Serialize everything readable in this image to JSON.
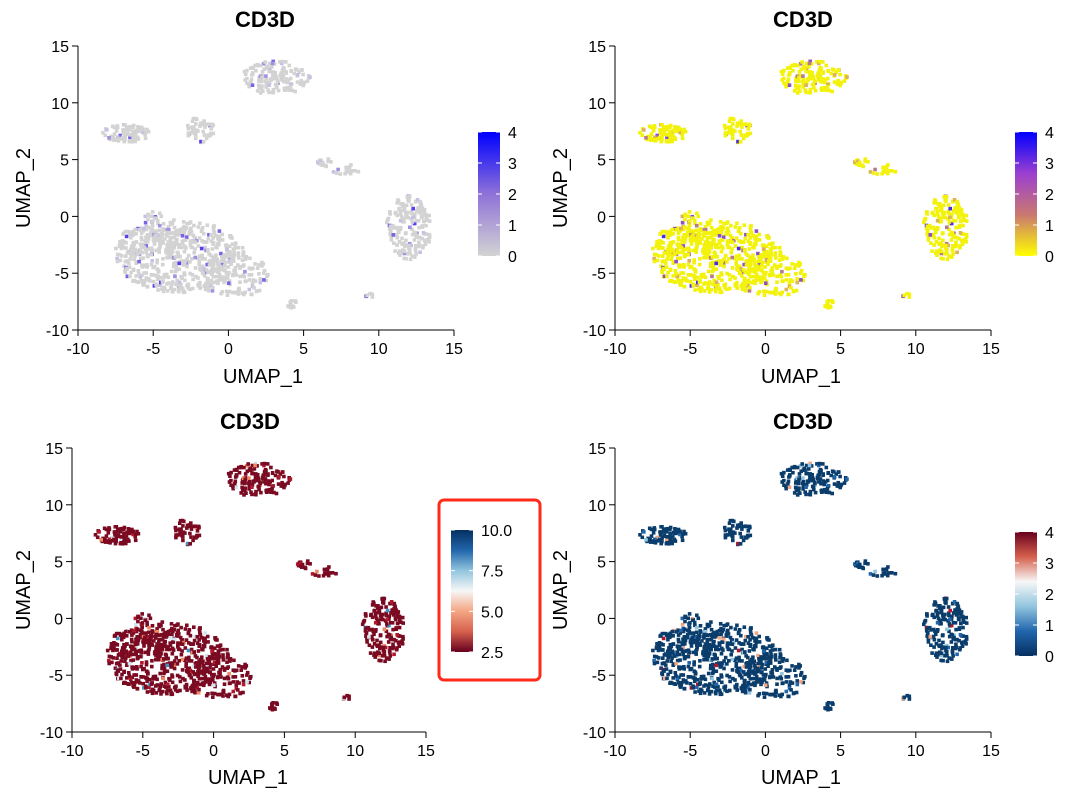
{
  "chart_data": [
    {
      "type": "scatter",
      "title": "CD3D",
      "xlabel": "UMAP_1",
      "ylabel": "UMAP_2",
      "xlim": [
        -10,
        15
      ],
      "ylim": [
        -10,
        15
      ],
      "xticks": [
        "-10",
        "-5",
        "0",
        "5",
        "10",
        "15"
      ],
      "yticks": [
        "-10",
        "-5",
        "0",
        "5",
        "10",
        "15"
      ],
      "legend": {
        "labels": [
          "4",
          "3",
          "2",
          "1",
          "0"
        ],
        "values": [
          4,
          3,
          2,
          1,
          0
        ],
        "gradient": [
          "#0000ff",
          "#8f72d8",
          "#d3d3d3"
        ],
        "highlighted": false
      },
      "background_color": "#d3d3d3",
      "colors": [
        "#d3d3d3",
        "#c7c0e3",
        "#a48fe0",
        "#7d62e6",
        "#5a3df0"
      ],
      "expression_mix": [
        0.9,
        0.04,
        0.03,
        0.02,
        0.01
      ]
    },
    {
      "type": "scatter",
      "title": "CD3D",
      "xlabel": "UMAP_1",
      "ylabel": "UMAP_2",
      "xlim": [
        -10,
        15
      ],
      "ylim": [
        -10,
        15
      ],
      "xticks": [
        "-10",
        "-5",
        "0",
        "5",
        "10",
        "15"
      ],
      "yticks": [
        "-10",
        "-5",
        "0",
        "5",
        "10",
        "15"
      ],
      "legend": {
        "labels": [
          "4",
          "3",
          "2",
          "1",
          "0"
        ],
        "values": [
          4,
          3,
          2,
          1,
          0
        ],
        "gradient": [
          "#0000ff",
          "#9b3fd0",
          "#c97870",
          "#ffff00"
        ],
        "highlighted": false
      },
      "background_color": "#f2f20a",
      "colors": [
        "#f2f20a",
        "#dcb15a",
        "#b57a8e",
        "#8e4fc2",
        "#4a2be8"
      ],
      "expression_mix": [
        0.9,
        0.04,
        0.03,
        0.02,
        0.01
      ]
    },
    {
      "type": "scatter",
      "title": "CD3D",
      "xlabel": "UMAP_1",
      "ylabel": "UMAP_2",
      "xlim": [
        -10,
        15
      ],
      "ylim": [
        -10,
        15
      ],
      "xticks": [
        "-10",
        "-5",
        "0",
        "5",
        "10",
        "15"
      ],
      "yticks": [
        "-10",
        "-5",
        "0",
        "5",
        "10",
        "15"
      ],
      "legend": {
        "labels": [
          "10.0",
          "7.5",
          "5.0",
          "2.5"
        ],
        "values": [
          10.0,
          7.5,
          5.0,
          2.5
        ],
        "gradient": [
          "#053061",
          "#2166ac",
          "#92c5de",
          "#f7f7f7",
          "#f4a582",
          "#d6604d",
          "#67001f"
        ],
        "highlighted": true,
        "highlight_color": "#ff2a1a"
      },
      "background_color": "#7a0a22",
      "colors": [
        "#7a0a22",
        "#b2182b",
        "#ef8a62",
        "#d1e5f0",
        "#4393c3"
      ],
      "expression_mix": [
        0.9,
        0.04,
        0.03,
        0.02,
        0.01
      ]
    },
    {
      "type": "scatter",
      "title": "CD3D",
      "xlabel": "UMAP_1",
      "ylabel": "UMAP_2",
      "xlim": [
        -10,
        15
      ],
      "ylim": [
        -10,
        15
      ],
      "xticks": [
        "-10",
        "-5",
        "0",
        "5",
        "10",
        "15"
      ],
      "yticks": [
        "-10",
        "-5",
        "0",
        "5",
        "10",
        "15"
      ],
      "legend": {
        "labels": [
          "4",
          "3",
          "2",
          "1",
          "0"
        ],
        "values": [
          4,
          3,
          2,
          1,
          0
        ],
        "gradient": [
          "#67001f",
          "#d6604d",
          "#f7f7f7",
          "#92c5de",
          "#2166ac",
          "#053061"
        ],
        "highlighted": false
      },
      "background_color": "#0a3d6b",
      "colors": [
        "#0a3d6b",
        "#2166ac",
        "#92c5de",
        "#f4a582",
        "#b2182b"
      ],
      "expression_mix": [
        0.9,
        0.04,
        0.03,
        0.02,
        0.01
      ]
    }
  ]
}
